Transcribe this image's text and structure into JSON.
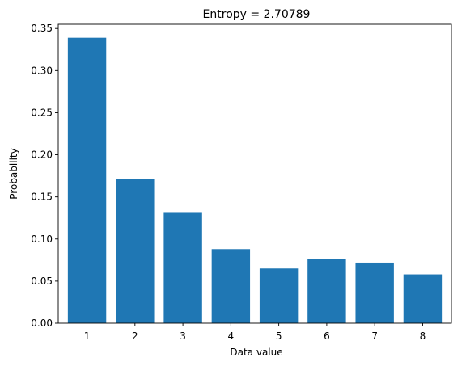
{
  "chart_data": {
    "type": "bar",
    "title": "Entropy = 2.70789",
    "xlabel": "Data value",
    "ylabel": "Probability",
    "categories": [
      "1",
      "2",
      "3",
      "4",
      "5",
      "6",
      "7",
      "8"
    ],
    "values": [
      0.339,
      0.171,
      0.131,
      0.088,
      0.065,
      0.076,
      0.072,
      0.058
    ],
    "ylim": [
      0,
      0.355
    ],
    "yticks": [
      "0.00",
      "0.05",
      "0.10",
      "0.15",
      "0.20",
      "0.25",
      "0.30",
      "0.35"
    ],
    "bar_color": "#1f77b4",
    "grid": false
  }
}
